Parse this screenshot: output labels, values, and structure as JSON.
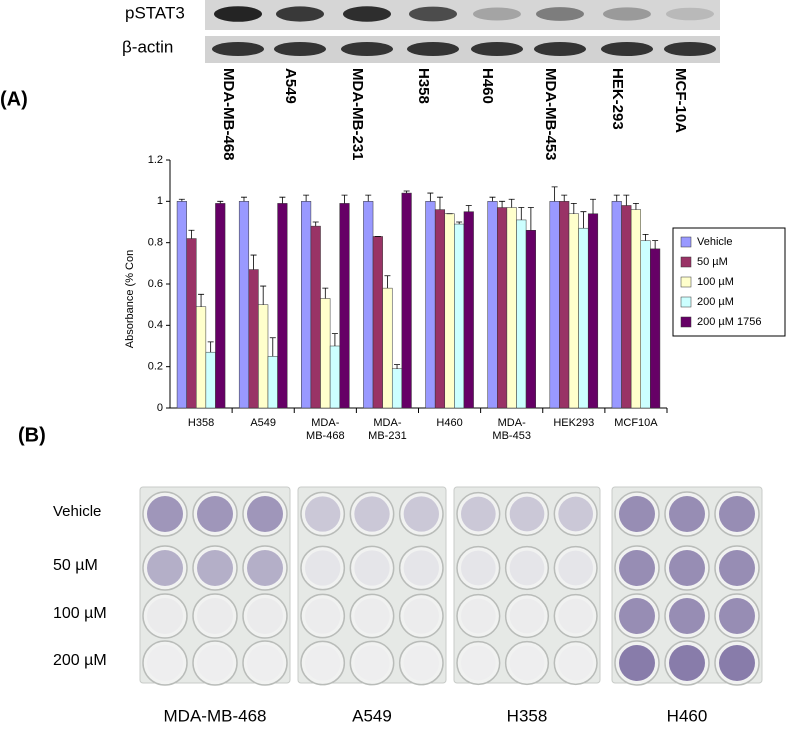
{
  "figure": {
    "panel_a_label": "(A)",
    "panel_b_label": "(B)"
  },
  "blot": {
    "rows": [
      "pSTAT3",
      "β-actin"
    ],
    "lanes": [
      "MDA-MB-468",
      "A549",
      "MDA-MB-231",
      "H358",
      "H460",
      "MDA-MB-453",
      "HEK-293",
      "MCF-10A"
    ]
  },
  "chart_data": {
    "type": "bar",
    "ylabel": "Absorbance (% Con",
    "categories": [
      "H358",
      "A549",
      "MDA-MB-468",
      "MDA-MB-231",
      "H460",
      "MDA-MB-453",
      "HEK293",
      "MCF10A"
    ],
    "series": [
      {
        "name": "Vehicle",
        "color": "#9999ff",
        "values": [
          1.0,
          1.0,
          1.0,
          1.0,
          1.0,
          1.0,
          1.0,
          1.0
        ],
        "errors": [
          0.01,
          0.02,
          0.03,
          0.03,
          0.04,
          0.02,
          0.07,
          0.03
        ]
      },
      {
        "name": "50 µM",
        "color": "#993366",
        "values": [
          0.82,
          0.67,
          0.88,
          0.83,
          0.96,
          0.97,
          1.0,
          0.98
        ],
        "errors": [
          0.04,
          0.07,
          0.02,
          0.0,
          0.06,
          0.03,
          0.03,
          0.05
        ]
      },
      {
        "name": "100 µM",
        "color": "#ffffcc",
        "values": [
          0.49,
          0.5,
          0.53,
          0.58,
          0.94,
          0.97,
          0.94,
          0.96
        ],
        "errors": [
          0.06,
          0.09,
          0.05,
          0.06,
          0.0,
          0.04,
          0.05,
          0.03
        ]
      },
      {
        "name": "200 µM",
        "color": "#ccffff",
        "values": [
          0.27,
          0.25,
          0.3,
          0.19,
          0.89,
          0.91,
          0.87,
          0.81
        ],
        "errors": [
          0.05,
          0.09,
          0.06,
          0.02,
          0.01,
          0.06,
          0.08,
          0.03
        ]
      },
      {
        "name": "200 µM 1756",
        "color": "#660066",
        "values": [
          0.99,
          0.99,
          0.99,
          1.04,
          0.95,
          0.86,
          0.94,
          0.77
        ],
        "errors": [
          0.01,
          0.03,
          0.04,
          0.01,
          0.03,
          0.11,
          0.07,
          0.04
        ]
      }
    ],
    "ylim": [
      0,
      1.2
    ],
    "yticks": [
      0,
      0.2,
      0.4,
      0.6,
      0.8,
      1,
      1.2
    ],
    "legend": "right"
  },
  "plates": {
    "rows": [
      "Vehicle",
      "50 µM",
      "100 µM",
      "200 µM"
    ],
    "cell_lines": [
      "MDA-MB-468",
      "A549",
      "H358",
      "H460"
    ]
  }
}
